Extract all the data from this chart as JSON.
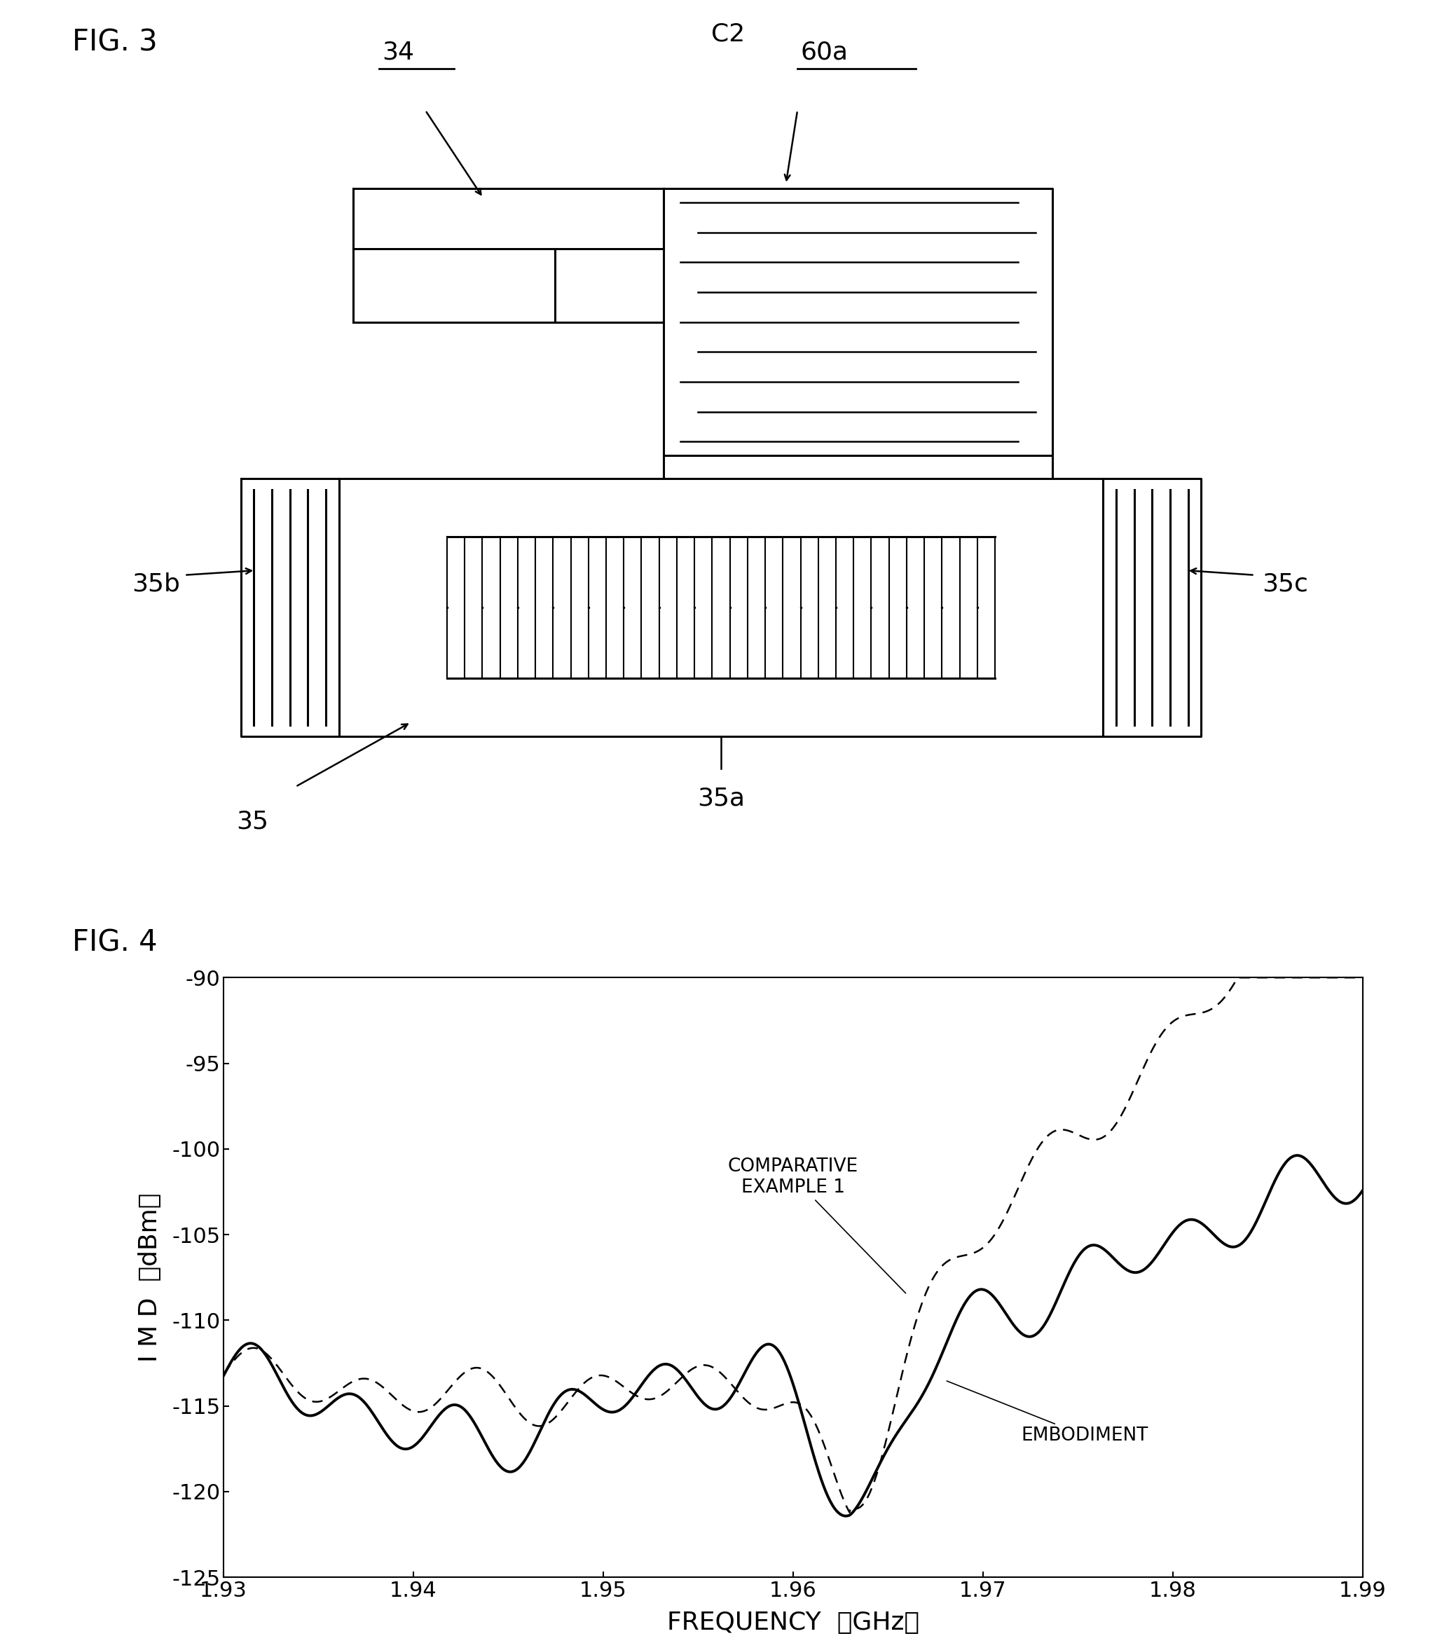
{
  "fig3_label": "FIG. 3",
  "fig4_label": "FIG. 4",
  "label_34": "34",
  "label_60a": "60a",
  "label_C2": "C2",
  "label_35": "35",
  "label_35a": "35a",
  "label_35b": "35b",
  "label_35c": "35c",
  "graph_xlabel": "FREQUENCY　（GHz）",
  "graph_ylabel": "I M D　（dBm）",
  "xlim": [
    1.93,
    1.99
  ],
  "ylim": [
    -125,
    -90
  ],
  "xticks": [
    1.93,
    1.94,
    1.95,
    1.96,
    1.97,
    1.98,
    1.99
  ],
  "yticks": [
    -125,
    -120,
    -115,
    -110,
    -105,
    -100,
    -95,
    -90
  ],
  "label_comparative": "COMPARATIVE\nEXAMPLE 1",
  "label_embodiment": "EMBODIMENT"
}
